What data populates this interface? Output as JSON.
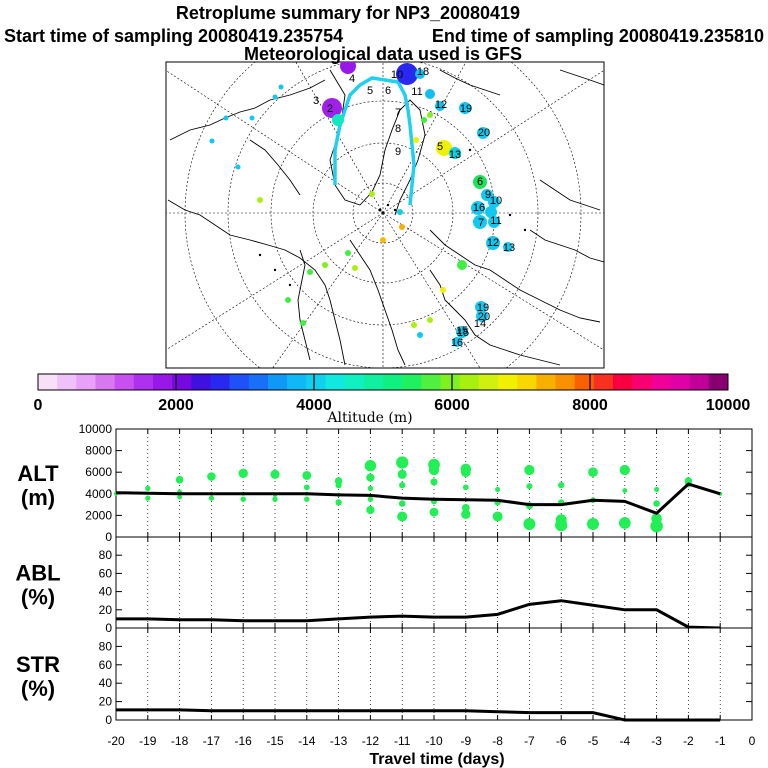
{
  "header": {
    "title": "Retroplume summary for NP3_20080419",
    "start_label": "Start time of sampling 20080419.235754",
    "end_label": "End time of sampling 20080419.235810",
    "met_label": "Meteorological data used is GFS"
  },
  "colorbar": {
    "colors": [
      "#f8e0f8",
      "#f0c0f8",
      "#e8a0f8",
      "#d878f0",
      "#c850f0",
      "#b030f0",
      "#9818e8",
      "#7808e0",
      "#4010e0",
      "#2828f0",
      "#2050f8",
      "#1870f8",
      "#1098f8",
      "#10b8f8",
      "#10d0f0",
      "#10e8e0",
      "#10f0c0",
      "#10f0a0",
      "#10f080",
      "#20f060",
      "#50f040",
      "#80f020",
      "#a8f010",
      "#d0f010",
      "#f0f000",
      "#f8d800",
      "#f8b000",
      "#f89000",
      "#f86000",
      "#f83020",
      "#f80040",
      "#f80070",
      "#f00098",
      "#e000a8",
      "#c00098",
      "#880070"
    ],
    "ticks": [
      "0",
      "2000",
      "4000",
      "6000",
      "8000",
      "10000"
    ],
    "label": "Altitude (m)"
  },
  "map": {
    "labels": [
      {
        "t": "4"
      },
      {
        "t": "5"
      },
      {
        "t": "6"
      },
      {
        "t": "7"
      },
      {
        "t": "8"
      },
      {
        "t": "9"
      },
      {
        "t": "3"
      },
      {
        "t": "2"
      },
      {
        "t": "10"
      },
      {
        "t": "11"
      },
      {
        "t": "18"
      },
      {
        "t": "19"
      },
      {
        "t": "20"
      },
      {
        "t": "12"
      },
      {
        "t": "13"
      },
      {
        "t": "5"
      },
      {
        "t": "6"
      },
      {
        "t": "9"
      },
      {
        "t": "10"
      },
      {
        "t": "16"
      },
      {
        "t": "7"
      },
      {
        "t": "11"
      },
      {
        "t": "12"
      },
      {
        "t": "13"
      },
      {
        "t": "15"
      },
      {
        "t": "19"
      },
      {
        "t": "20"
      },
      {
        "t": "14"
      },
      {
        "t": "15"
      },
      {
        "t": "16"
      }
    ]
  },
  "panels": [
    {
      "label1": "ALT",
      "label2": "(m)"
    },
    {
      "label1": "ABL",
      "label2": "(%)"
    },
    {
      "label1": "STR",
      "label2": "(%)"
    }
  ],
  "xaxis": {
    "ticks": [
      "-20",
      "-19",
      "-18",
      "-17",
      "-16",
      "-15",
      "-14",
      "-13",
      "-12",
      "-11",
      "-10",
      "-9",
      "-8",
      "-7",
      "-6",
      "-5",
      "-4",
      "-3",
      "-2",
      "-1",
      "0"
    ],
    "label": "Travel time (days)"
  },
  "chart_data": [
    {
      "type": "line",
      "name": "ALT",
      "ylabel": "ALT (m)",
      "ylim": [
        0,
        10000
      ],
      "yticks": [
        "0",
        "2000",
        "4000",
        "6000",
        "8000",
        "10000"
      ],
      "x": [
        -20,
        -19,
        -18,
        -17,
        -16,
        -15,
        -14,
        -13,
        -12,
        -11,
        -10,
        -9,
        -8,
        -7,
        -6,
        -5,
        -4,
        -3,
        -2,
        -1
      ],
      "values": [
        4100,
        4050,
        4000,
        4000,
        4000,
        4000,
        4000,
        3900,
        3850,
        3600,
        3500,
        3450,
        3400,
        3000,
        3000,
        3400,
        3300,
        2200,
        4900,
        4000
      ],
      "scatter": {
        "color": "#22ee55",
        "points": [
          [
            -20,
            4000
          ],
          [
            -19,
            3600
          ],
          [
            -19,
            4500
          ],
          [
            -18,
            3700
          ],
          [
            -18,
            4200
          ],
          [
            -18,
            5300
          ],
          [
            -17,
            3600
          ],
          [
            -17,
            4000
          ],
          [
            -17,
            5600
          ],
          [
            -16,
            3500
          ],
          [
            -16,
            4000
          ],
          [
            -16,
            5900
          ],
          [
            -15,
            3500
          ],
          [
            -15,
            3900
          ],
          [
            -15,
            5800
          ],
          [
            -14,
            3500
          ],
          [
            -14,
            4000
          ],
          [
            -14,
            4600
          ],
          [
            -14,
            5700
          ],
          [
            -13,
            3200
          ],
          [
            -13,
            3900
          ],
          [
            -13,
            4800
          ],
          [
            -13,
            5200
          ],
          [
            -12,
            2500
          ],
          [
            -12,
            3500
          ],
          [
            -12,
            4500
          ],
          [
            -12,
            5500
          ],
          [
            -12,
            6600
          ],
          [
            -11,
            1900
          ],
          [
            -11,
            3100
          ],
          [
            -11,
            4800
          ],
          [
            -11,
            5800
          ],
          [
            -11,
            6900
          ],
          [
            -10,
            2300
          ],
          [
            -10,
            3300
          ],
          [
            -10,
            5100
          ],
          [
            -10,
            6200
          ],
          [
            -10,
            6700
          ],
          [
            -9,
            2100
          ],
          [
            -9,
            2700
          ],
          [
            -9,
            4600
          ],
          [
            -9,
            6000
          ],
          [
            -9,
            6300
          ],
          [
            -8,
            1900
          ],
          [
            -8,
            3200
          ],
          [
            -8,
            4400
          ],
          [
            -7,
            1200
          ],
          [
            -7,
            2900
          ],
          [
            -7,
            4700
          ],
          [
            -7,
            6200
          ],
          [
            -6,
            1100
          ],
          [
            -6,
            1600
          ],
          [
            -6,
            3200
          ],
          [
            -6,
            4800
          ],
          [
            -5,
            1200
          ],
          [
            -5,
            3400
          ],
          [
            -5,
            6000
          ],
          [
            -4,
            1300
          ],
          [
            -4,
            4300
          ],
          [
            -4,
            6200
          ],
          [
            -3,
            1000
          ],
          [
            -3,
            1700
          ],
          [
            -3,
            3100
          ],
          [
            -3,
            4400
          ],
          [
            -2,
            5200
          ],
          [
            -2,
            4900
          ],
          [
            -1,
            4000
          ]
        ]
      }
    },
    {
      "type": "line",
      "name": "ABL",
      "ylabel": "ABL (%)",
      "ylim": [
        0,
        100
      ],
      "yticks": [
        "0",
        "20",
        "40",
        "60",
        "80"
      ],
      "x": [
        -20,
        -19,
        -18,
        -17,
        -16,
        -15,
        -14,
        -13,
        -12,
        -11,
        -10,
        -9,
        -8,
        -7,
        -6,
        -5,
        -4,
        -3,
        -2,
        -1
      ],
      "values": [
        10,
        10,
        9,
        9,
        8,
        8,
        8,
        10,
        12,
        13,
        12,
        12,
        15,
        26,
        30,
        25,
        20,
        20,
        1,
        0
      ]
    },
    {
      "type": "line",
      "name": "STR",
      "ylabel": "STR (%)",
      "ylim": [
        0,
        100
      ],
      "yticks": [
        "0",
        "20",
        "40",
        "60",
        "80"
      ],
      "x": [
        -20,
        -19,
        -18,
        -17,
        -16,
        -15,
        -14,
        -13,
        -12,
        -11,
        -10,
        -9,
        -8,
        -7,
        -6,
        -5,
        -4,
        -3,
        -2,
        -1
      ],
      "values": [
        11,
        11,
        11,
        10,
        10,
        10,
        10,
        10,
        10,
        10,
        10,
        10,
        9,
        8,
        8,
        8,
        0,
        0,
        0,
        0
      ]
    }
  ]
}
